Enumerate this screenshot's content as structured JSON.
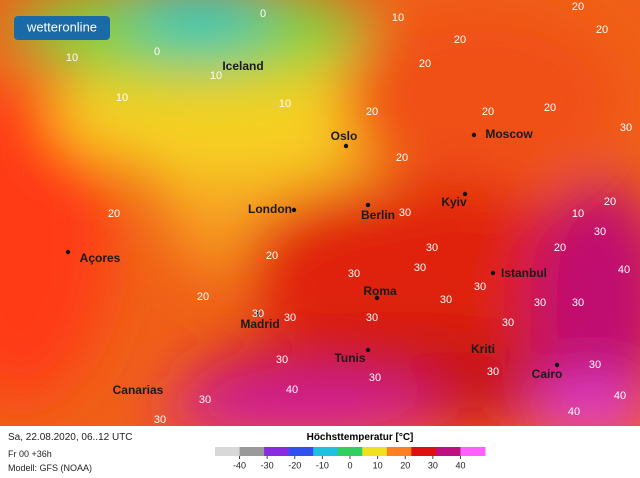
{
  "brand": "wetteronline",
  "cities": [
    "Iceland",
    "Oslo",
    "Moscow",
    "London",
    "Berlin",
    "Kyiv",
    "Açores",
    "Istanbul",
    "Roma",
    "Madrid",
    "Tunis",
    "Kriti",
    "Cairo",
    "Canarias"
  ],
  "contour_labels": [
    0,
    10,
    0,
    10,
    20,
    20,
    10,
    10,
    10,
    20,
    20,
    20,
    20,
    20,
    30,
    20,
    20,
    10,
    20,
    20,
    30,
    30,
    30,
    20,
    30,
    30,
    30,
    30,
    30,
    30,
    30,
    30,
    30,
    30,
    30,
    40,
    40,
    40,
    30,
    40,
    30,
    20,
    30,
    30,
    30
  ],
  "footer": {
    "date": "Sa, 22.08.2020, 06..12 UTC",
    "run": "Fr 00 +36h",
    "model": "Modell: GFS (NOAA)"
  },
  "legend": {
    "title": "Höchsttemperatur [°C]",
    "ticks": [
      -40,
      -30,
      -20,
      -10,
      0,
      10,
      20,
      30,
      40
    ],
    "colors": [
      "#d8d8d8",
      "#9a9a9a",
      "#8a2be2",
      "#3050f0",
      "#20c0e0",
      "#30d060",
      "#f0e020",
      "#ff8020",
      "#e01010",
      "#c01080",
      "#ff60ff"
    ]
  }
}
